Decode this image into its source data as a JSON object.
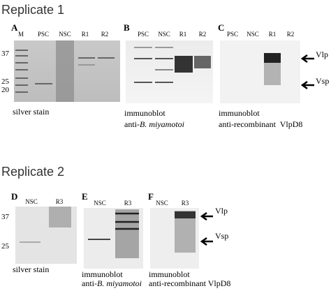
{
  "replicates": [
    {
      "title": "Replicate 1",
      "panels": [
        {
          "letter": "A",
          "lanes": [
            "M",
            "PSC",
            "NSC",
            "R1",
            "R2"
          ],
          "markers": [
            "37",
            "25",
            "20"
          ],
          "caption": [
            "silver stain"
          ]
        },
        {
          "letter": "B",
          "lanes": [
            "PSC",
            "NSC",
            "R1",
            "R2"
          ],
          "caption": [
            "immunoblot"
          ],
          "caption_prefix": "anti-",
          "caption_italic": "B. miyamotoi"
        },
        {
          "letter": "C",
          "lanes": [
            "PSC",
            "NSC",
            "R1",
            "R2"
          ],
          "arrows": [
            "Vlp",
            "Vsp"
          ],
          "caption": [
            "immunoblot",
            "anti-recombinant  VlpD8"
          ]
        }
      ]
    },
    {
      "title": "Replicate 2",
      "panels": [
        {
          "letter": "D",
          "lanes": [
            "NSC",
            "R3"
          ],
          "markers": [
            "37",
            "25"
          ],
          "caption": [
            "silver stain"
          ]
        },
        {
          "letter": "E",
          "lanes": [
            "NSC",
            "R3"
          ],
          "caption": [
            "immunoblot"
          ],
          "caption_prefix": "anti-",
          "caption_italic": "B. miyamotoi"
        },
        {
          "letter": "F",
          "lanes": [
            "NSC",
            "R3"
          ],
          "arrows": [
            "Vlp",
            "Vsp"
          ],
          "caption": [
            "immunoblot",
            "anti-recombinant VlpD8"
          ]
        }
      ]
    }
  ]
}
